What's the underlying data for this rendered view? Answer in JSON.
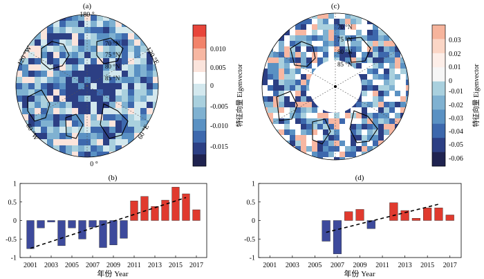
{
  "colors": {
    "positive_bar": "#e03a2e",
    "negative_bar": "#3d4a9c",
    "land_outline": "#000000"
  },
  "maps": [
    {
      "panel_label": "(a)",
      "top_label": "180 °",
      "bottom_label": "0 °",
      "left_top_label": "120 °W",
      "right_top_label": "120 °E",
      "left_bottom_label": "60 °W",
      "right_bottom_label": "60 °E",
      "lat_labels": [
        "70 °N",
        "75 °N",
        "80 °N",
        "85 °N"
      ],
      "masked_center": false
    },
    {
      "panel_label": "(c)",
      "lat_labels": [
        "70 °N",
        "75 °N",
        "80 °N",
        "85 °N"
      ],
      "masked_center": true
    }
  ],
  "colorbars": [
    {
      "title": "特征向量 Eigenvector",
      "colors": [
        "#e8453a",
        "#f2836a",
        "#f7b7a2",
        "#fbe4dc",
        "#ffffff",
        "#d3e8ee",
        "#a9d0de",
        "#7fb1d1",
        "#5a91c3",
        "#3d68ad",
        "#2c3f84",
        "#1f2350"
      ],
      "tick_labels": [
        "0.010",
        "0.005",
        "0",
        "-0.005",
        "-0.010",
        "-0.015"
      ]
    },
    {
      "title": "特征向量 Eigenvector",
      "colors": [
        "#f6b49c",
        "#fbd6c6",
        "#fdeee8",
        "#f6f6f6",
        "#a9d0de",
        "#7fb1d1",
        "#5a91c3",
        "#3d68ad",
        "#2c3f84",
        "#1f2350"
      ],
      "tick_labels": [
        "0.03",
        "0.02",
        "0.01",
        "0",
        "-0.01",
        "-0.02",
        "-0.03",
        "-0.04",
        "-0.05",
        "-0.06"
      ]
    }
  ],
  "chart_data": [
    {
      "type": "bar",
      "panel_label": "(b)",
      "x": [
        2001,
        2002,
        2003,
        2004,
        2005,
        2006,
        2007,
        2008,
        2009,
        2010,
        2011,
        2012,
        2013,
        2014,
        2015,
        2016,
        2017
      ],
      "values": [
        -0.76,
        -0.2,
        -0.04,
        -0.68,
        -0.2,
        -0.5,
        -0.18,
        -0.73,
        -0.66,
        -0.48,
        0.53,
        0.65,
        0.38,
        0.55,
        0.9,
        0.72,
        0.29
      ],
      "trend": {
        "x": [
          2001,
          2016
        ],
        "y": [
          -0.75,
          0.62
        ]
      },
      "xlabel": "年份 Year",
      "xtick_labels": [
        "2001",
        "2003",
        "2005",
        "2007",
        "2009",
        "2011",
        "2013",
        "2015",
        "2017"
      ],
      "ytick_labels": [
        "1",
        "0.5",
        "0",
        "-0.5",
        "-1"
      ],
      "ylim": [
        -1,
        1
      ]
    },
    {
      "type": "bar",
      "panel_label": "(d)",
      "x": [
        2006,
        2007,
        2008,
        2009,
        2010,
        2012,
        2013,
        2014,
        2015,
        2016,
        2017
      ],
      "values": [
        -0.56,
        -0.9,
        0.24,
        0.3,
        -0.22,
        0.48,
        0.27,
        0.06,
        0.34,
        0.34,
        0.15
      ],
      "trend": {
        "x": [
          2006,
          2016
        ],
        "y": [
          -0.32,
          0.44
        ]
      },
      "xlabel": "年份 Year",
      "xtick_labels": [
        "2001",
        "2003",
        "2005",
        "2007",
        "2009",
        "2011",
        "2013",
        "2015",
        "2017"
      ],
      "ytick_labels": [
        "1",
        "0.5",
        "0",
        "-0.5",
        "-1"
      ],
      "ylim": [
        -1,
        1
      ]
    }
  ]
}
